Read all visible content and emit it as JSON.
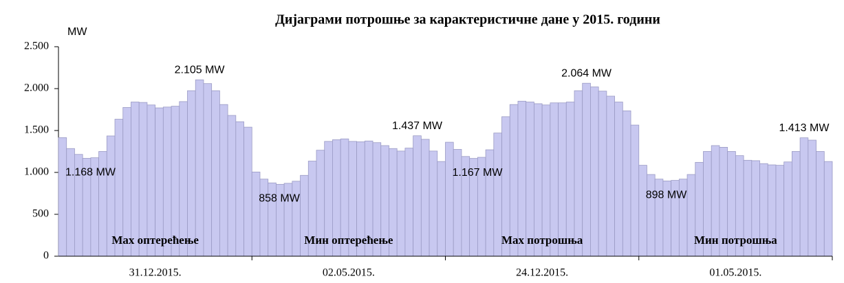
{
  "chart_data": {
    "type": "bar",
    "title": "Дијаграми потрошње за карактеристичне дане у 2015. години",
    "y_label": "MW",
    "ylim": [
      0,
      2500
    ],
    "yticks": [
      0,
      500,
      {
        "value": 1000,
        "label": "1.000"
      },
      {
        "value": 1500,
        "label": "1.500"
      },
      {
        "value": 2000,
        "label": "2.000"
      },
      {
        "value": 2500,
        "label": "2.500"
      }
    ],
    "color": "#c8c8f0",
    "groups": [
      {
        "category": "31.12.2015.",
        "label": "Мах оптерећење",
        "max_label": "2.105 MW",
        "min_label": "1.168 MW",
        "values": [
          1415,
          1285,
          1215,
          1168,
          1175,
          1250,
          1435,
          1635,
          1775,
          1840,
          1835,
          1805,
          1770,
          1780,
          1790,
          1845,
          1975,
          2105,
          2060,
          1975,
          1810,
          1680,
          1605,
          1540
        ]
      },
      {
        "category": "02.05.2015.",
        "label": "Мин оптерећење",
        "max_label": "1.437 MW",
        "min_label": "858 MW",
        "values": [
          1005,
          920,
          875,
          858,
          870,
          895,
          965,
          1135,
          1265,
          1370,
          1390,
          1400,
          1370,
          1365,
          1375,
          1355,
          1320,
          1285,
          1255,
          1290,
          1437,
          1395,
          1255,
          1130
        ]
      },
      {
        "category": "24.12.2015.",
        "label": "Мах потрошња",
        "max_label": "2.064 MW",
        "min_label": "1.167 MW",
        "values": [
          1360,
          1275,
          1190,
          1167,
          1180,
          1270,
          1470,
          1665,
          1810,
          1850,
          1840,
          1820,
          1805,
          1830,
          1830,
          1840,
          1975,
          2064,
          2020,
          1970,
          1910,
          1840,
          1735,
          1565
        ]
      },
      {
        "category": "01.05.2015.",
        "label": "Мин потрошња",
        "max_label": "1.413 MW",
        "min_label": "898 MW",
        "values": [
          1085,
          975,
          920,
          898,
          905,
          920,
          975,
          1120,
          1250,
          1320,
          1300,
          1250,
          1200,
          1145,
          1140,
          1105,
          1090,
          1085,
          1125,
          1250,
          1413,
          1385,
          1250,
          1130
        ]
      }
    ]
  }
}
